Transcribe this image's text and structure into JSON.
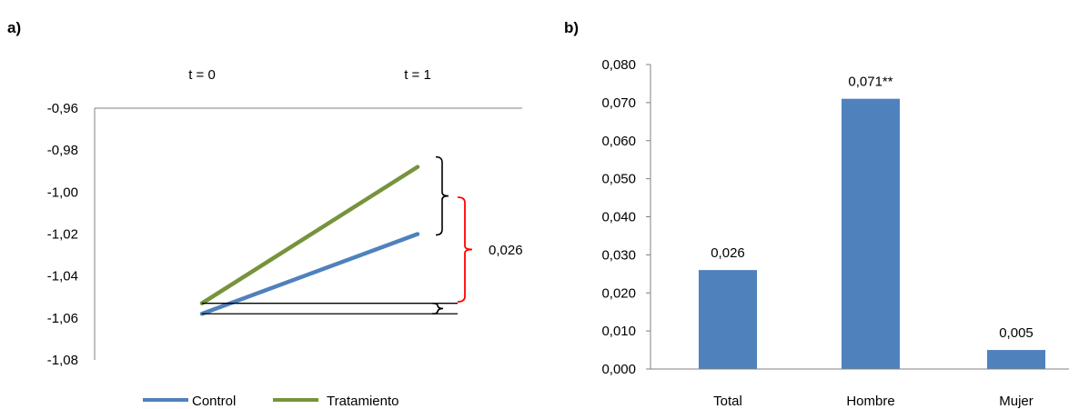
{
  "chart_data": [
    {
      "panel": "a)",
      "type": "line",
      "x": [
        "t = 0",
        "t = 1"
      ],
      "series": [
        {
          "name": "Control",
          "values": [
            -1.058,
            -1.02
          ],
          "color": "#4F81BD"
        },
        {
          "name": "Tratamiento",
          "values": [
            -1.053,
            -0.988
          ],
          "color": "#77933C"
        }
      ],
      "yticks": [
        "-0,96",
        "-0,98",
        "-1,00",
        "-1,02",
        "-1,04",
        "-1,06",
        "-1,08"
      ],
      "ytick_values": [
        -0.96,
        -0.98,
        -1.0,
        -1.02,
        -1.04,
        -1.06,
        -1.08
      ],
      "ylim": [
        -1.08,
        -0.96
      ],
      "x_axis_position": "top",
      "legend": "bottom",
      "annotation": "0,026",
      "annotation_color": "#FF0000"
    },
    {
      "panel": "b)",
      "type": "bar",
      "categories": [
        "Total",
        "Hombre",
        "Mujer"
      ],
      "values": [
        0.026,
        0.071,
        0.005
      ],
      "data_labels": [
        "0,026",
        "0,071**",
        "0,005"
      ],
      "yticks": [
        "0,000",
        "0,010",
        "0,020",
        "0,030",
        "0,040",
        "0,050",
        "0,060",
        "0,070",
        "0,080"
      ],
      "ytick_values": [
        0,
        0.01,
        0.02,
        0.03,
        0.04,
        0.05,
        0.06,
        0.07,
        0.08
      ],
      "ylim": [
        0,
        0.08
      ],
      "color": "#4F81BD"
    }
  ]
}
